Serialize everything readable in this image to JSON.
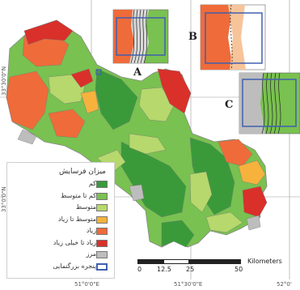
{
  "graticule": {
    "lon_labels": [
      "51°0'0\"E",
      "51°30'0\"E",
      "52°0'"
    ],
    "lat_labels": [
      "33°30'0\"N",
      "33°0'0\"N"
    ]
  },
  "insets": {
    "a_label": "A",
    "b_label": "B",
    "c_label": "C"
  },
  "legend": {
    "title": "میزان فرسایش",
    "items": [
      {
        "label": "کم",
        "color": "#3a9a3a"
      },
      {
        "label": "کم تا متوسط",
        "color": "#79c150"
      },
      {
        "label": "متوسط",
        "color": "#b6d86c"
      },
      {
        "label": "متوسط تا زیاد",
        "color": "#f6b23d"
      },
      {
        "label": "زیاد",
        "color": "#ef6b3a"
      },
      {
        "label": "زیاد تا خیلی زیاد",
        "color": "#d9302a"
      },
      {
        "label": "مرز",
        "color": "#bdbdbd"
      },
      {
        "label": "پنجره بزرگنمایی",
        "color": "#4060b0"
      }
    ]
  },
  "scalebar": {
    "ticks": [
      "0",
      "12.5",
      "25",
      "50"
    ],
    "unit": "Kilometers"
  }
}
